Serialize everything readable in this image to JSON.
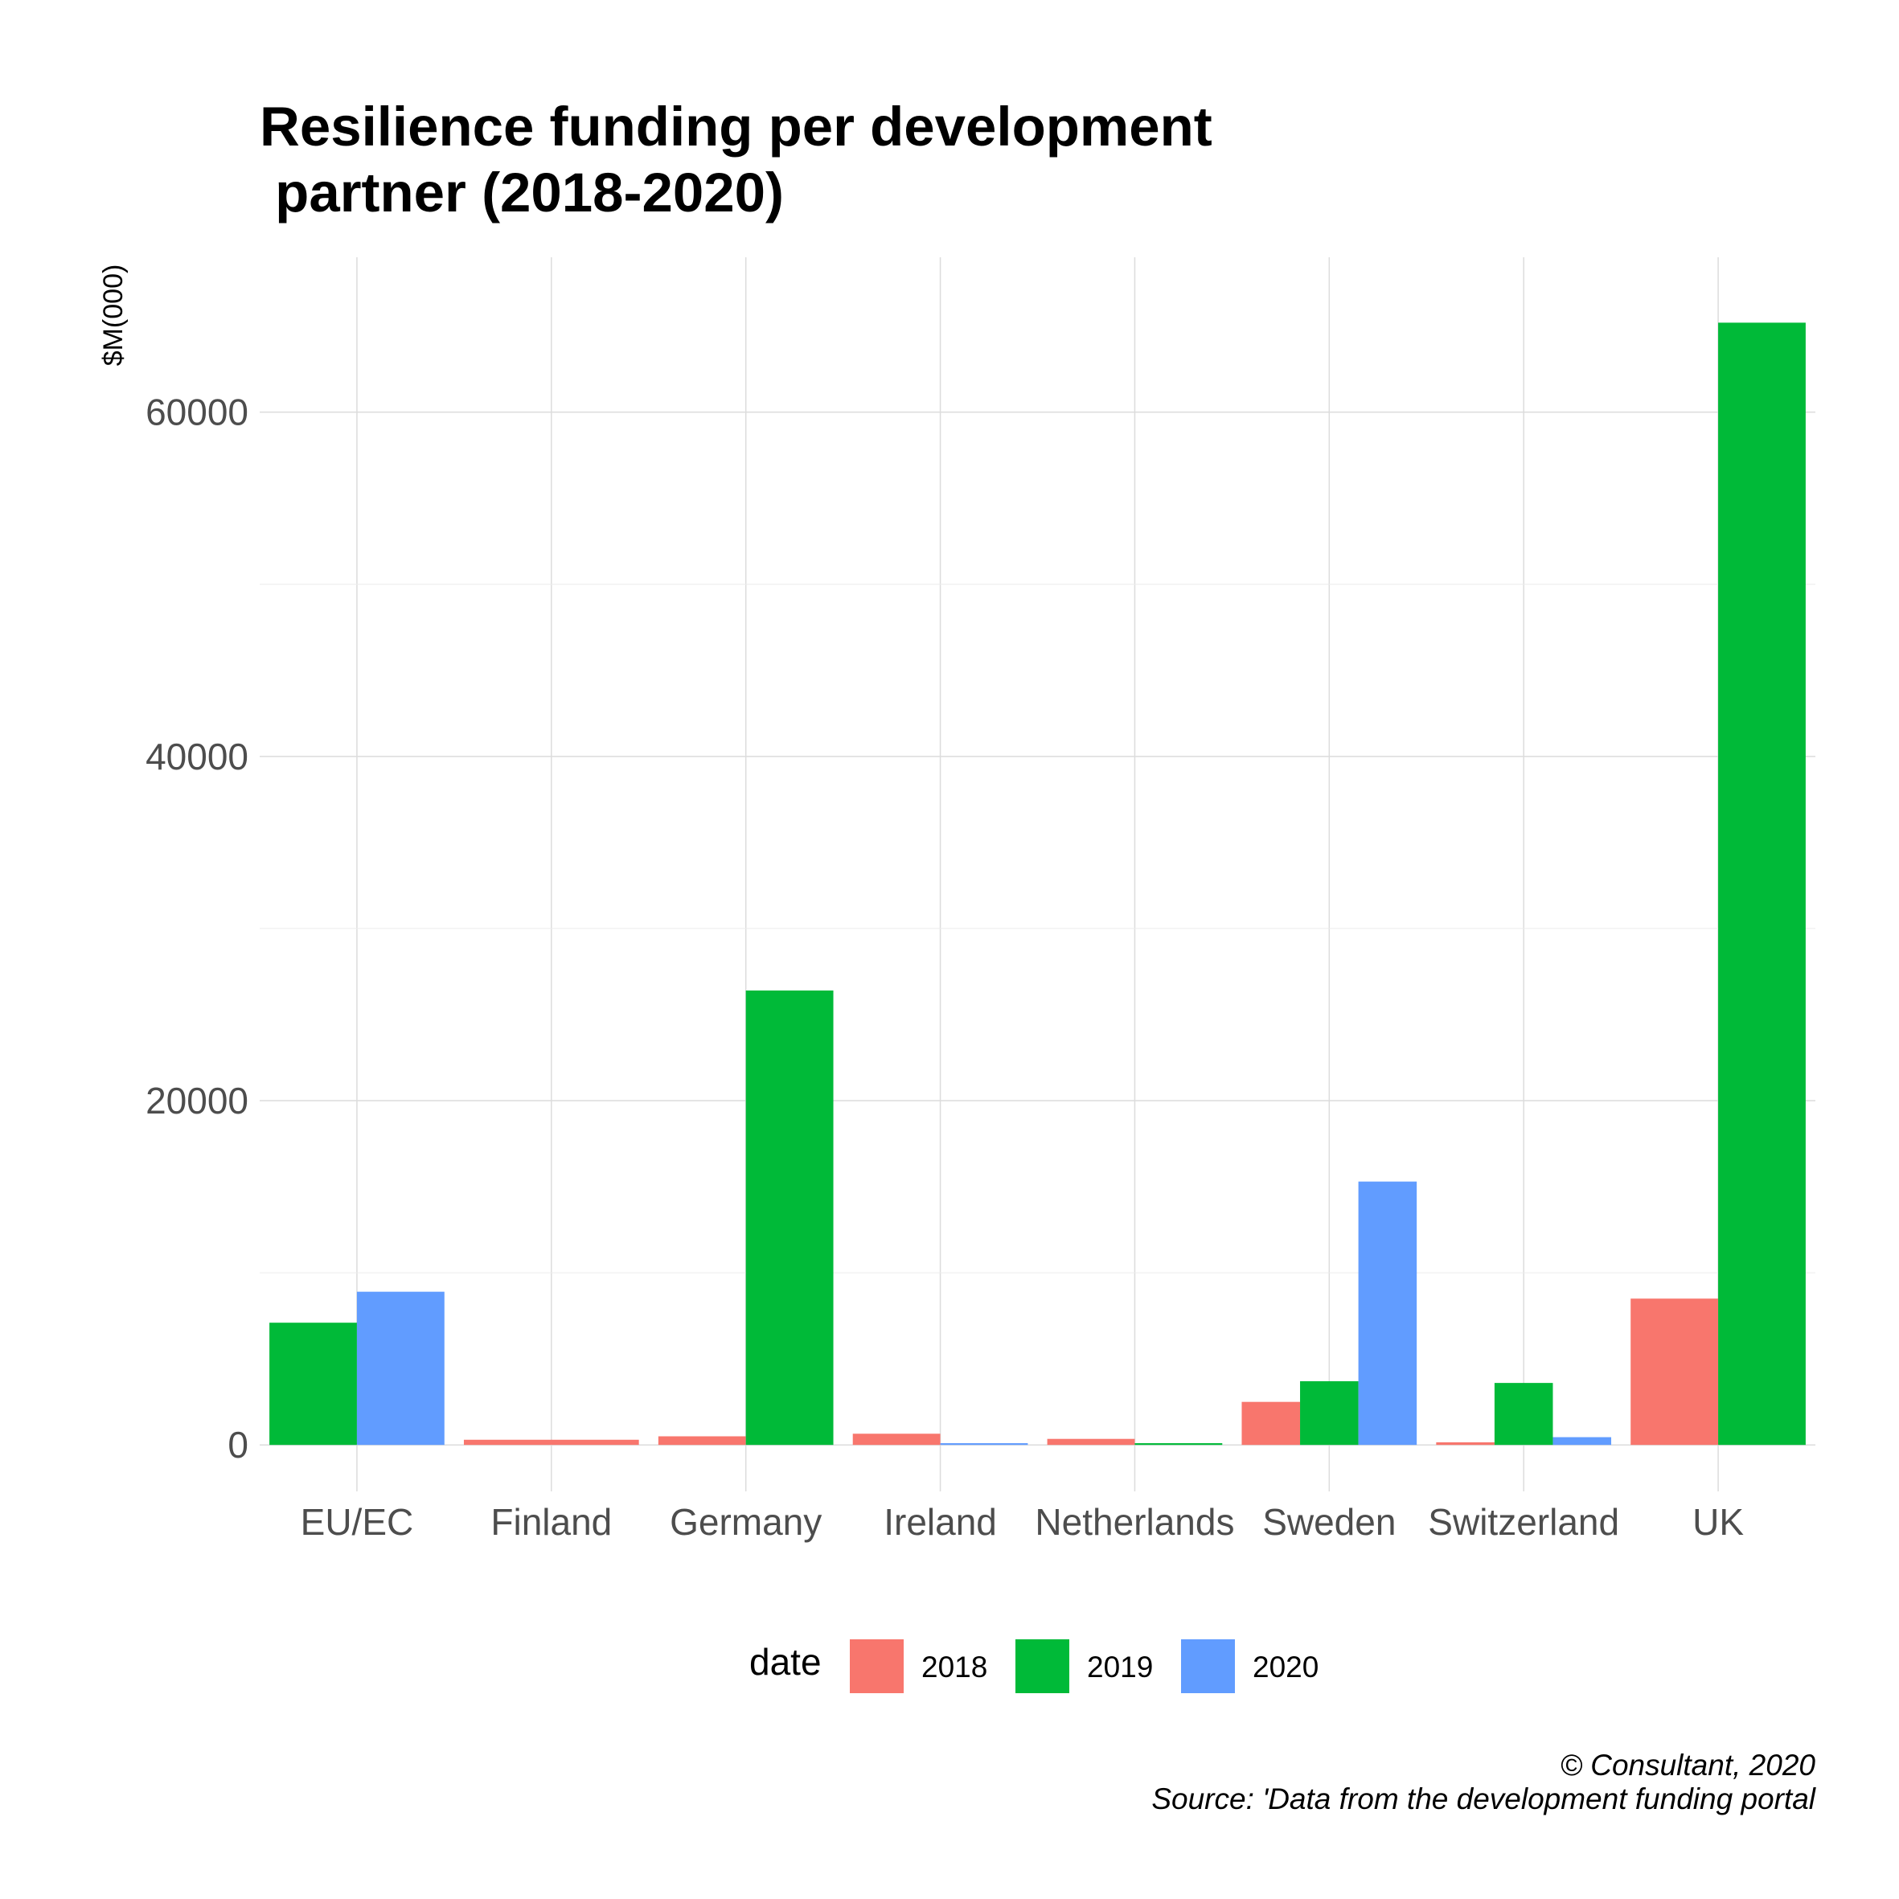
{
  "chart_data": {
    "type": "bar",
    "title_lines": [
      "Resilience funding per development",
      " partner (2018-2020)"
    ],
    "xlabel": "",
    "ylabel": "$M(000)",
    "categories": [
      "EU/EC",
      "Finland",
      "Germany",
      "Ireland",
      "Netherlands",
      "Sweden",
      "Switzerland",
      "UK"
    ],
    "series": [
      {
        "name": "2018",
        "color": "#F8766D",
        "values": [
          null,
          300,
          500,
          650,
          350,
          2500,
          150,
          8500
        ]
      },
      {
        "name": "2019",
        "color": "#00BA38",
        "values": [
          7100,
          null,
          26400,
          null,
          100,
          3700,
          3600,
          65200
        ]
      },
      {
        "name": "2020",
        "color": "#619CFF",
        "values": [
          8900,
          null,
          null,
          100,
          null,
          15300,
          450,
          null
        ]
      }
    ],
    "ylim": [
      -2700,
      69000
    ],
    "yticks": [
      0,
      20000,
      40000,
      60000
    ],
    "ytick_labels": [
      "0",
      "20000",
      "40000",
      "60000"
    ],
    "grid": true,
    "legend": {
      "title": "date",
      "position": "bottom",
      "items": [
        "2018",
        "2019",
        "2020"
      ]
    },
    "caption_lines": [
      "© Consultant, 2020",
      "Source: 'Data from the development funding portal"
    ]
  }
}
